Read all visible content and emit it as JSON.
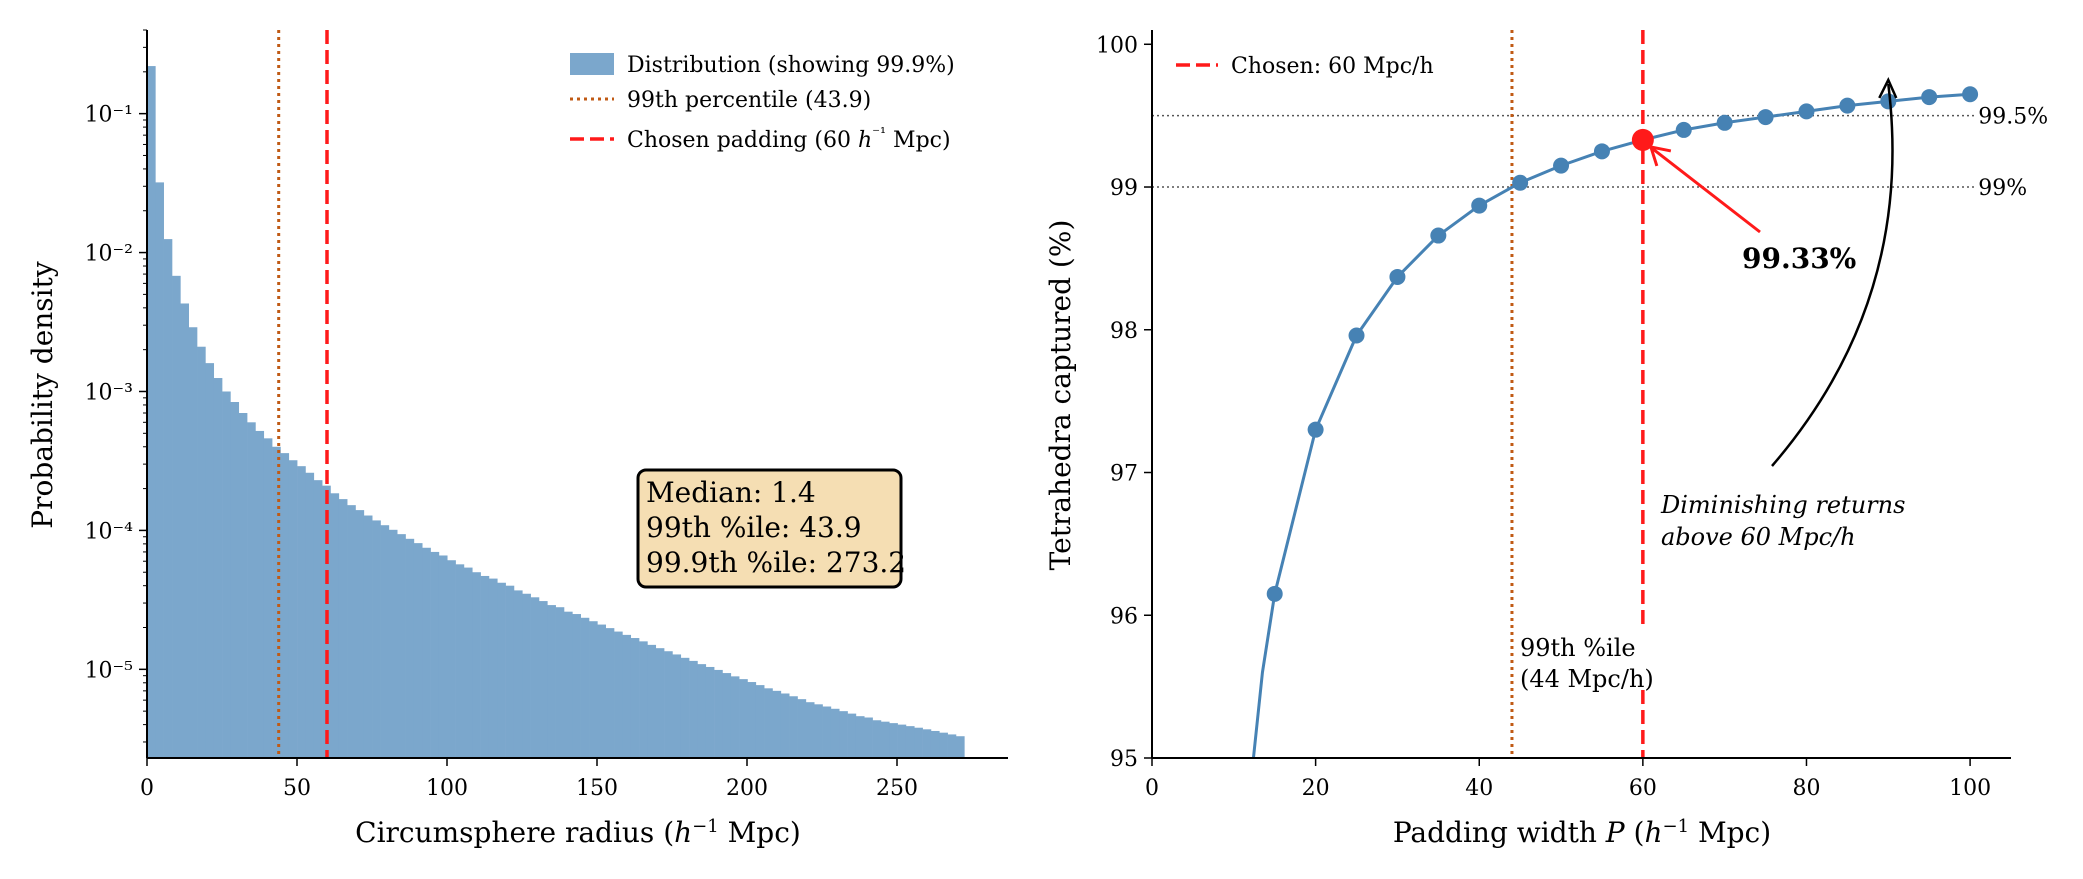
{
  "chart_data": [
    {
      "type": "bar",
      "subtype": "histogram",
      "yscale": "log",
      "xlim": [
        0,
        287
      ],
      "ylim": [
        2.3e-06,
        0.4
      ],
      "xlabel": "Circumsphere radius (h⁻¹ Mpc)",
      "ylabel": "Probability density",
      "xticks": [
        0,
        50,
        100,
        150,
        200,
        250
      ],
      "yticks": [
        1e-05,
        0.0001,
        0.001,
        0.01,
        0.1
      ],
      "ytick_labels": [
        "10⁻⁵",
        "10⁻⁴",
        "10⁻³",
        "10⁻²",
        "10⁻¹"
      ],
      "bin_width": 2.78,
      "bin_start": 0,
      "bar_color": "#7ba7cc",
      "values": [
        0.22,
        0.032,
        0.0125,
        0.0068,
        0.0043,
        0.0029,
        0.0021,
        0.0016,
        0.00125,
        0.001,
        0.00084,
        0.0007,
        0.0006,
        0.00052,
        0.00046,
        0.0004,
        0.00036,
        0.00032,
        0.00029,
        0.00026,
        0.00023,
        0.00021,
        0.000185,
        0.000168,
        0.000152,
        0.00014,
        0.000128,
        0.000118,
        0.000109,
        0.000101,
        9.4e-05,
        8.7e-05,
        8.1e-05,
        7.5e-05,
        7e-05,
        6.6e-05,
        6.1e-05,
        5.7e-05,
        5.4e-05,
        5e-05,
        4.7e-05,
        4.5e-05,
        4.2e-05,
        4e-05,
        3.7e-05,
        3.5e-05,
        3.3e-05,
        3.1e-05,
        2.9e-05,
        2.8e-05,
        2.6e-05,
        2.5e-05,
        2.35e-05,
        2.22e-05,
        2.1e-05,
        1.98e-05,
        1.87e-05,
        1.77e-05,
        1.68e-05,
        1.59e-05,
        1.5e-05,
        1.42e-05,
        1.35e-05,
        1.28e-05,
        1.21e-05,
        1.15e-05,
        1.09e-05,
        1.04e-05,
        9.9e-06,
        9.4e-06,
        8.9e-06,
        8.5e-06,
        8.1e-06,
        7.7e-06,
        7.3e-06,
        7e-06,
        6.7e-06,
        6.4e-06,
        6.1e-06,
        5.8e-06,
        5.6e-06,
        5.4e-06,
        5.2e-06,
        5e-06,
        4.8e-06,
        4.6e-06,
        4.5e-06,
        4.3e-06,
        4.2e-06,
        4.1e-06,
        4e-06,
        3.9e-06,
        3.8e-06,
        3.7e-06,
        3.6e-06,
        3.5e-06,
        3.4e-06,
        3.3e-06
      ],
      "vlines": [
        {
          "x": 43.9,
          "style": "dotted",
          "color": "#c05a14"
        },
        {
          "x": 60,
          "style": "dashed",
          "color": "#ff1a1a"
        }
      ],
      "legend": {
        "placement": "upper-right",
        "entries": [
          {
            "label": "Distribution (showing 99.9%)",
            "kind": "patch",
            "color": "#7ba7cc"
          },
          {
            "label": "99th percentile (43.9)",
            "kind": "dotted",
            "color": "#c05a14"
          },
          {
            "label_parts": [
              "Chosen padding (60 ",
              "h",
              "⁻¹",
              " Mpc)"
            ],
            "kind": "dashed",
            "color": "#ff1a1a"
          }
        ]
      },
      "stats_box": {
        "lines": [
          "Median: 1.4",
          "99th %ile: 43.9",
          "99.9th %ile: 273.2"
        ],
        "fill": "#f5deb3"
      }
    },
    {
      "type": "line",
      "xlim": [
        0,
        105
      ],
      "ylim": [
        95,
        100.1
      ],
      "xlabel": "Padding width P (h⁻¹ Mpc)",
      "ylabel": "Tetrahedra captured (%)",
      "xticks": [
        0,
        20,
        40,
        60,
        80,
        100
      ],
      "yticks": [
        95,
        96,
        97,
        98,
        99,
        100
      ],
      "series": [
        {
          "color": "#4682b4",
          "x": [
            15,
            20,
            25,
            30,
            35,
            40,
            45,
            50,
            55,
            60,
            65,
            70,
            75,
            80,
            85,
            90,
            95,
            100
          ],
          "y": [
            96.15,
            97.3,
            97.96,
            98.37,
            98.66,
            98.87,
            99.03,
            99.15,
            99.25,
            99.33,
            99.4,
            99.45,
            99.49,
            99.53,
            99.57,
            99.6,
            99.63,
            99.65
          ]
        }
      ],
      "curve_extension": {
        "x": [
          12.4,
          13.5,
          15
        ],
        "y": [
          95,
          95.6,
          96.15
        ]
      },
      "highlight_point": {
        "x": 60,
        "y": 99.33,
        "label": "99.33%",
        "color": "#ff1a1a"
      },
      "hlines": [
        {
          "y": 99.5,
          "label": "99.5%"
        },
        {
          "y": 99,
          "label": "99%"
        }
      ],
      "vlines": [
        {
          "x": 44,
          "style": "dotted",
          "color": "#c05a14",
          "label_lines": [
            "99th %ile",
            "(44 Mpc/h)"
          ]
        },
        {
          "x": 60,
          "style": "dashed",
          "color": "#ff1a1a"
        }
      ],
      "legend": {
        "placement": "upper-left",
        "entries": [
          {
            "label": "Chosen: 60 Mpc/h",
            "kind": "dashed",
            "color": "#ff1a1a"
          }
        ]
      },
      "annotation": {
        "lines": [
          "Diminishing returns",
          "above 60 Mpc/h"
        ],
        "arrow_to": {
          "x": 90,
          "y": 99.75
        }
      }
    }
  ]
}
